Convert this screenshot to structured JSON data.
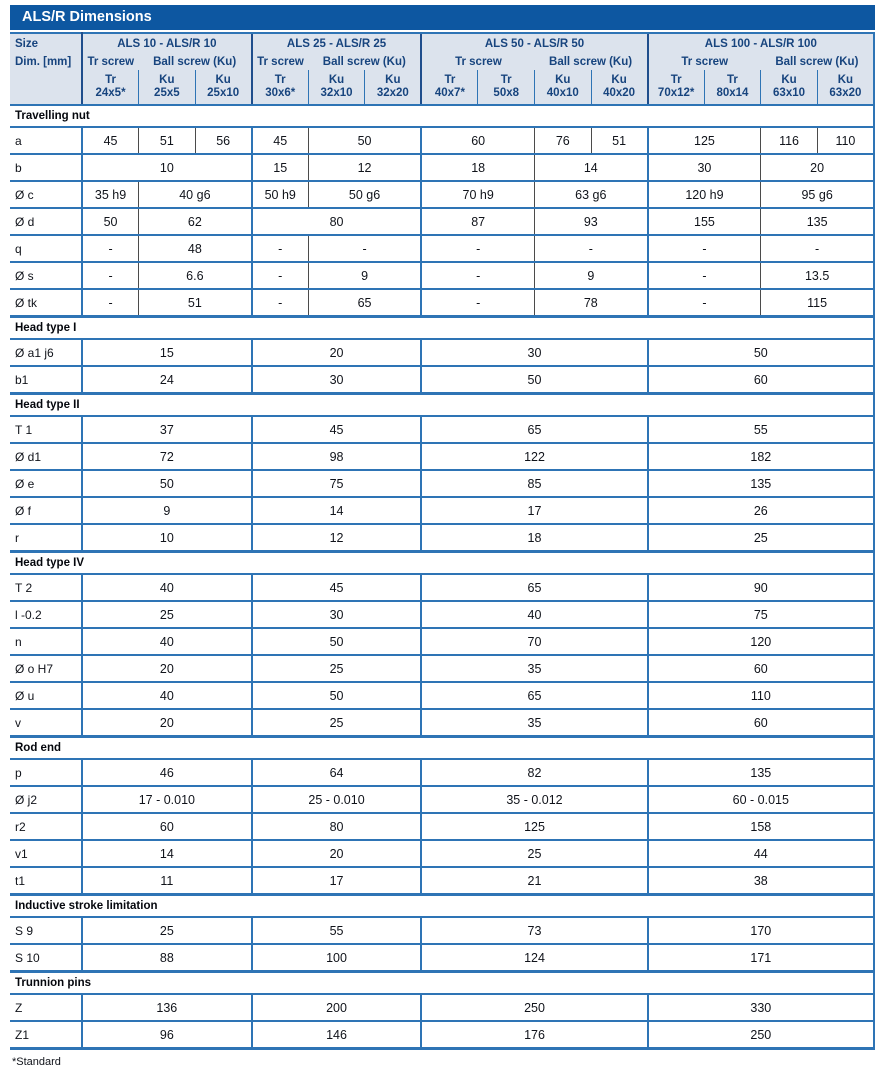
{
  "title": "ALS/R Dimensions",
  "footnote": "*Standard",
  "colors": {
    "title_bar_bg": "#0d57a1",
    "header_bg": "#dce3ed",
    "header_text": "#17447e",
    "grid_blue": "#2e74b5",
    "sub_divider": "#4b4b4b"
  },
  "header": {
    "size_label": "Size",
    "dim_label": "Dim. [mm]",
    "groups": [
      {
        "title": "ALS 10 - ALS/R 10",
        "tr_label": "Tr screw",
        "ball_label": "Ball screw (Ku)",
        "tr_cols": 1,
        "columns": [
          [
            "Tr",
            "24x5*"
          ],
          [
            "Ku",
            "25x5"
          ],
          [
            "Ku",
            "25x10"
          ]
        ]
      },
      {
        "title": "ALS 25 - ALS/R 25",
        "tr_label": "Tr screw",
        "ball_label": "Ball screw (Ku)",
        "tr_cols": 1,
        "columns": [
          [
            "Tr",
            "30x6*"
          ],
          [
            "Ku",
            "32x10"
          ],
          [
            "Ku",
            "32x20"
          ]
        ]
      },
      {
        "title": "ALS 50 - ALS/R 50",
        "tr_label": "Tr screw",
        "ball_label": "Ball screw (Ku)",
        "tr_cols": 2,
        "columns": [
          [
            "Tr",
            "40x7*"
          ],
          [
            "Tr",
            "50x8"
          ],
          [
            "Ku",
            "40x10"
          ],
          [
            "Ku",
            "40x20"
          ]
        ]
      },
      {
        "title": "ALS 100 - ALS/R 100",
        "tr_label": "Tr screw",
        "ball_label": "Ball screw (Ku)",
        "tr_cols": 2,
        "columns": [
          [
            "Tr",
            "70x12*"
          ],
          [
            "Tr",
            "80x14"
          ],
          [
            "Ku",
            "63x10"
          ],
          [
            "Ku",
            "63x20"
          ]
        ]
      }
    ]
  },
  "sections": [
    {
      "title": "Travelling nut",
      "rows": [
        {
          "label": "a",
          "cells": [
            [
              "45",
              1
            ],
            [
              "51",
              1
            ],
            [
              "56",
              1
            ],
            [
              "45",
              1
            ],
            [
              "50",
              2
            ],
            [
              "60",
              2
            ],
            [
              "76",
              1
            ],
            [
              "51",
              1
            ],
            [
              "125",
              2
            ],
            [
              "116",
              1
            ],
            [
              "110",
              1
            ]
          ]
        },
        {
          "label": "b",
          "cells": [
            [
              "10",
              3
            ],
            [
              "15",
              1
            ],
            [
              "12",
              2
            ],
            [
              "18",
              2
            ],
            [
              "14",
              2
            ],
            [
              "30",
              2
            ],
            [
              "20",
              2
            ]
          ]
        },
        {
          "label": "Ø c",
          "cells": [
            [
              "35 h9",
              1
            ],
            [
              "40 g6",
              2
            ],
            [
              "50 h9",
              1
            ],
            [
              "50 g6",
              2
            ],
            [
              "70 h9",
              2
            ],
            [
              "63 g6",
              2
            ],
            [
              "120 h9",
              2
            ],
            [
              "95 g6",
              2
            ]
          ]
        },
        {
          "label": "Ø d",
          "cells": [
            [
              "50",
              1
            ],
            [
              "62",
              2
            ],
            [
              "80",
              3
            ],
            [
              "87",
              2
            ],
            [
              "93",
              2
            ],
            [
              "155",
              2
            ],
            [
              "135",
              2
            ]
          ]
        },
        {
          "label": "q",
          "cells": [
            [
              "-",
              1
            ],
            [
              "48",
              2
            ],
            [
              "-",
              1
            ],
            [
              "-",
              2
            ],
            [
              "-",
              2
            ],
            [
              "-",
              2
            ],
            [
              "-",
              2
            ],
            [
              "-",
              2
            ]
          ]
        },
        {
          "label": "Ø s",
          "cells": [
            [
              "-",
              1
            ],
            [
              "6.6",
              2
            ],
            [
              "-",
              1
            ],
            [
              "9",
              2
            ],
            [
              "-",
              2
            ],
            [
              "9",
              2
            ],
            [
              "-",
              2
            ],
            [
              "13.5",
              2
            ]
          ]
        },
        {
          "label": "Ø tk",
          "cells": [
            [
              "-",
              1
            ],
            [
              "51",
              2
            ],
            [
              "-",
              1
            ],
            [
              "65",
              2
            ],
            [
              "-",
              2
            ],
            [
              "78",
              2
            ],
            [
              "-",
              2
            ],
            [
              "115",
              2
            ]
          ]
        }
      ]
    },
    {
      "title": "Head type I",
      "rows": [
        {
          "label": "Ø a1 j6",
          "cells": [
            [
              "15",
              3
            ],
            [
              "20",
              3
            ],
            [
              "30",
              4
            ],
            [
              "50",
              4
            ]
          ]
        },
        {
          "label": "b1",
          "cells": [
            [
              "24",
              3
            ],
            [
              "30",
              3
            ],
            [
              "50",
              4
            ],
            [
              "60",
              4
            ]
          ]
        }
      ]
    },
    {
      "title": "Head type II",
      "rows": [
        {
          "label": "T 1",
          "cells": [
            [
              "37",
              3
            ],
            [
              "45",
              3
            ],
            [
              "65",
              4
            ],
            [
              "55",
              4
            ]
          ]
        },
        {
          "label": "Ø d1",
          "cells": [
            [
              "72",
              3
            ],
            [
              "98",
              3
            ],
            [
              "122",
              4
            ],
            [
              "182",
              4
            ]
          ]
        },
        {
          "label": "Ø e",
          "cells": [
            [
              "50",
              3
            ],
            [
              "75",
              3
            ],
            [
              "85",
              4
            ],
            [
              "135",
              4
            ]
          ]
        },
        {
          "label": "Ø f",
          "cells": [
            [
              "9",
              3
            ],
            [
              "14",
              3
            ],
            [
              "17",
              4
            ],
            [
              "26",
              4
            ]
          ]
        },
        {
          "label": "r",
          "cells": [
            [
              "10",
              3
            ],
            [
              "12",
              3
            ],
            [
              "18",
              4
            ],
            [
              "25",
              4
            ]
          ]
        }
      ]
    },
    {
      "title": "Head type IV",
      "rows": [
        {
          "label": "T 2",
          "cells": [
            [
              "40",
              3
            ],
            [
              "45",
              3
            ],
            [
              "65",
              4
            ],
            [
              "90",
              4
            ]
          ]
        },
        {
          "label": "l -0.2",
          "cells": [
            [
              "25",
              3
            ],
            [
              "30",
              3
            ],
            [
              "40",
              4
            ],
            [
              "75",
              4
            ]
          ]
        },
        {
          "label": "n",
          "cells": [
            [
              "40",
              3
            ],
            [
              "50",
              3
            ],
            [
              "70",
              4
            ],
            [
              "120",
              4
            ]
          ]
        },
        {
          "label": "Ø o H7",
          "cells": [
            [
              "20",
              3
            ],
            [
              "25",
              3
            ],
            [
              "35",
              4
            ],
            [
              "60",
              4
            ]
          ]
        },
        {
          "label": "Ø u",
          "cells": [
            [
              "40",
              3
            ],
            [
              "50",
              3
            ],
            [
              "65",
              4
            ],
            [
              "110",
              4
            ]
          ]
        },
        {
          "label": "v",
          "cells": [
            [
              "20",
              3
            ],
            [
              "25",
              3
            ],
            [
              "35",
              4
            ],
            [
              "60",
              4
            ]
          ]
        }
      ]
    },
    {
      "title": "Rod end",
      "rows": [
        {
          "label": "p",
          "cells": [
            [
              "46",
              3
            ],
            [
              "64",
              3
            ],
            [
              "82",
              4
            ],
            [
              "135",
              4
            ]
          ]
        },
        {
          "label": "Ø j2",
          "cells": [
            [
              "17 - 0.010",
              3
            ],
            [
              "25 - 0.010",
              3
            ],
            [
              "35 - 0.012",
              4
            ],
            [
              "60 - 0.015",
              4
            ]
          ]
        },
        {
          "label": "r2",
          "cells": [
            [
              "60",
              3
            ],
            [
              "80",
              3
            ],
            [
              "125",
              4
            ],
            [
              "158",
              4
            ]
          ]
        },
        {
          "label": "v1",
          "cells": [
            [
              "14",
              3
            ],
            [
              "20",
              3
            ],
            [
              "25",
              4
            ],
            [
              "44",
              4
            ]
          ]
        },
        {
          "label": "t1",
          "cells": [
            [
              "11",
              3
            ],
            [
              "17",
              3
            ],
            [
              "21",
              4
            ],
            [
              "38",
              4
            ]
          ]
        }
      ]
    },
    {
      "title": "Inductive stroke limitation",
      "rows": [
        {
          "label": "S 9",
          "cells": [
            [
              "25",
              3
            ],
            [
              "55",
              3
            ],
            [
              "73",
              4
            ],
            [
              "170",
              4
            ]
          ]
        },
        {
          "label": "S 10",
          "cells": [
            [
              "88",
              3
            ],
            [
              "100",
              3
            ],
            [
              "124",
              4
            ],
            [
              "171",
              4
            ]
          ]
        }
      ]
    },
    {
      "title": "Trunnion pins",
      "rows": [
        {
          "label": "Z",
          "cells": [
            [
              "136",
              3
            ],
            [
              "200",
              3
            ],
            [
              "250",
              4
            ],
            [
              "330",
              4
            ]
          ]
        },
        {
          "label": "Z1",
          "cells": [
            [
              "96",
              3
            ],
            [
              "146",
              3
            ],
            [
              "176",
              4
            ],
            [
              "250",
              4
            ]
          ]
        }
      ]
    }
  ]
}
